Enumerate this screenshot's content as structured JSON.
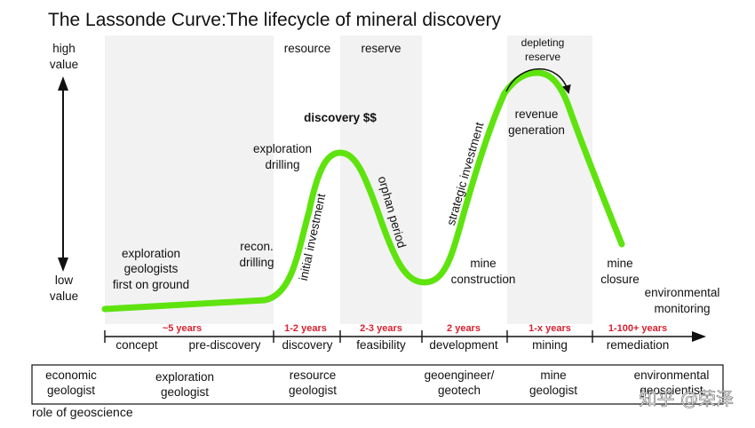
{
  "title": "The Lassonde Curve:The lifecycle of mineral discovery",
  "value_axis": {
    "high": [
      "high",
      "value"
    ],
    "low": [
      "low",
      "value"
    ]
  },
  "annotations": {
    "exploration_geologists": [
      "exploration",
      "geologists",
      "first on ground"
    ],
    "recon_drilling": [
      "recon.",
      "drilling"
    ],
    "exploration_drilling": [
      "exploration",
      "drilling"
    ],
    "discovery": "discovery $$",
    "initial_investment": "initial investment",
    "orphan_period": "orphan period",
    "strategic_investment": "strategic investment",
    "mine_construction": [
      "mine",
      "construction"
    ],
    "revenue_generation": [
      "revenue",
      "generation"
    ],
    "depleting_reserve": [
      "depleting",
      "reserve"
    ],
    "mine_closure": [
      "mine",
      "closure"
    ],
    "environmental_monitoring": [
      "environmental",
      "monitoring"
    ],
    "resource": "resource",
    "reserve": "reserve"
  },
  "durations": [
    "~5 years",
    "1-2 years",
    "2-3 years",
    "2 years",
    "1-x years",
    "1-100+ years"
  ],
  "phases": [
    "concept",
    "pre-discovery",
    "discovery",
    "feasibility",
    "development",
    "mining",
    "remediation"
  ],
  "roles": [
    [
      "economic",
      "geologist"
    ],
    [
      "exploration",
      "geologist"
    ],
    [
      "resource",
      "geologist"
    ],
    [
      "geoengineer/",
      "geotech"
    ],
    [
      "mine",
      "geologist"
    ],
    [
      "environmental",
      "geoscientist"
    ]
  ],
  "role_caption": "role of geoscience",
  "watermark": "知乎 @荣泽",
  "colors": {
    "curve": "#5fe30f",
    "duration_text": "#d8212f",
    "band": "#f2f2f2"
  }
}
